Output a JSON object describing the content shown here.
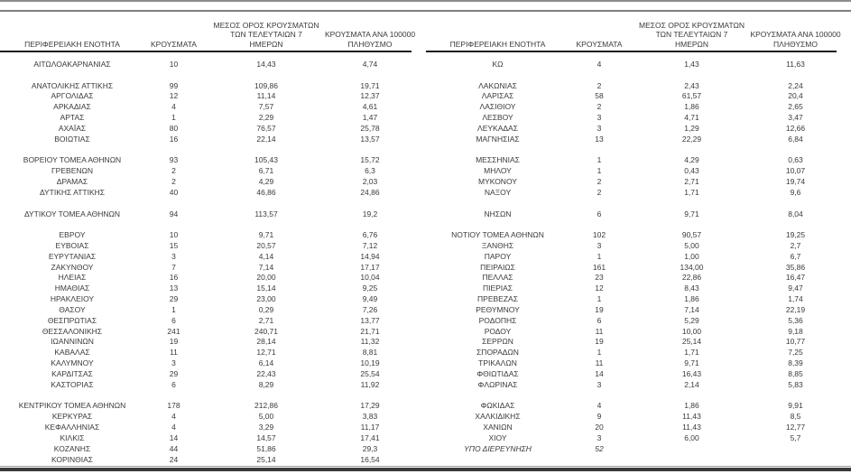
{
  "page": {
    "background": "#ffffff",
    "text_color": "#3a3a3a",
    "top_rule_color": "#8c8c8c",
    "header_rule_color": "#1c1c1c",
    "bottom_rule_color": "#3a3a3a"
  },
  "tables": [
    {
      "headers": {
        "region": "ΠΕΡΙΦΕΡΕΙΑΚΗ ΕΝΟΤΗΤΑ",
        "cases": "ΚΡΟΥΣΜΑΤΑ",
        "avg7": "ΜΕΣΟΣ ΟΡΟΣ ΚΡΟΥΣΜΑΤΩΝ\nΤΩΝ ΤΕΛΕΥΤΑΙΩΝ 7\nΗΜΕΡΩΝ",
        "per100k": "ΚΡΟΥΣΜΑΤΑ ΑΝΑ 100000\nΠΛΗΘΥΣΜΟ"
      },
      "rows": [
        {
          "region": "ΑΙΤΩΛΟΑΚΑΡΝΑΝΙΑΣ",
          "cases": "10",
          "avg7": "14,43",
          "per100k": "4,74"
        },
        {
          "blank": true
        },
        {
          "region": "ΑΝΑΤΟΛΙΚΗΣ ΑΤΤΙΚΗΣ",
          "cases": "99",
          "avg7": "109,86",
          "per100k": "19,71"
        },
        {
          "region": "ΑΡΓΟΛΙΔΑΣ",
          "cases": "12",
          "avg7": "11,14",
          "per100k": "12,37"
        },
        {
          "region": "ΑΡΚΑΔΙΑΣ",
          "cases": "4",
          "avg7": "7,57",
          "per100k": "4,61"
        },
        {
          "region": "ΑΡΤΑΣ",
          "cases": "1",
          "avg7": "2,29",
          "per100k": "1,47"
        },
        {
          "region": "ΑΧΑΪΑΣ",
          "cases": "80",
          "avg7": "76,57",
          "per100k": "25,78"
        },
        {
          "region": "ΒΟΙΩΤΙΑΣ",
          "cases": "16",
          "avg7": "22,14",
          "per100k": "13,57"
        },
        {
          "blank": true
        },
        {
          "region": "ΒΟΡΕΙΟΥ ΤΟΜΕΑ ΑΘΗΝΩΝ",
          "cases": "93",
          "avg7": "105,43",
          "per100k": "15,72"
        },
        {
          "region": "ΓΡΕΒΕΝΩΝ",
          "cases": "2",
          "avg7": "6,71",
          "per100k": "6,3"
        },
        {
          "region": "ΔΡΑΜΑΣ",
          "cases": "2",
          "avg7": "4,29",
          "per100k": "2,03"
        },
        {
          "region": "ΔΥΤΙΚΗΣ ΑΤΤΙΚΗΣ",
          "cases": "40",
          "avg7": "46,86",
          "per100k": "24,86"
        },
        {
          "blank": true
        },
        {
          "region": "ΔΥΤΙΚΟΥ ΤΟΜΕΑ ΑΘΗΝΩΝ",
          "cases": "94",
          "avg7": "113,57",
          "per100k": "19,2"
        },
        {
          "blank": true
        },
        {
          "region": "ΕΒΡΟΥ",
          "cases": "10",
          "avg7": "9,71",
          "per100k": "6,76"
        },
        {
          "region": "ΕΥΒΟΙΑΣ",
          "cases": "15",
          "avg7": "20,57",
          "per100k": "7,12"
        },
        {
          "region": "ΕΥΡΥΤΑΝΙΑΣ",
          "cases": "3",
          "avg7": "4,14",
          "per100k": "14,94"
        },
        {
          "region": "ΖΑΚΥΝΘΟΥ",
          "cases": "7",
          "avg7": "7,14",
          "per100k": "17,17"
        },
        {
          "region": "ΗΛΕΙΑΣ",
          "cases": "16",
          "avg7": "20,00",
          "per100k": "10,04"
        },
        {
          "region": "ΗΜΑΘΙΑΣ",
          "cases": "13",
          "avg7": "15,14",
          "per100k": "9,25"
        },
        {
          "region": "ΗΡΑΚΛΕΙΟΥ",
          "cases": "29",
          "avg7": "23,00",
          "per100k": "9,49"
        },
        {
          "region": "ΘΑΣΟΥ",
          "cases": "1",
          "avg7": "0,29",
          "per100k": "7,26"
        },
        {
          "region": "ΘΕΣΠΡΩΤΙΑΣ",
          "cases": "6",
          "avg7": "2,71",
          "per100k": "13,77"
        },
        {
          "region": "ΘΕΣΣΑΛΟΝΙΚΗΣ",
          "cases": "241",
          "avg7": "240,71",
          "per100k": "21,71"
        },
        {
          "region": "ΙΩΑΝΝΙΝΩΝ",
          "cases": "19",
          "avg7": "28,14",
          "per100k": "11,32"
        },
        {
          "region": "ΚΑΒΑΛΑΣ",
          "cases": "11",
          "avg7": "12,71",
          "per100k": "8,81"
        },
        {
          "region": "ΚΑΛΥΜΝΟΥ",
          "cases": "3",
          "avg7": "6,14",
          "per100k": "10,19"
        },
        {
          "region": "ΚΑΡΔΙΤΣΑΣ",
          "cases": "29",
          "avg7": "22,43",
          "per100k": "25,54"
        },
        {
          "region": "ΚΑΣΤΟΡΙΑΣ",
          "cases": "6",
          "avg7": "8,29",
          "per100k": "11,92"
        },
        {
          "blank": true
        },
        {
          "region": "ΚΕΝΤΡΙΚΟΥ ΤΟΜΕΑ ΑΘΗΝΩΝ",
          "cases": "178",
          "avg7": "212,86",
          "per100k": "17,29"
        },
        {
          "region": "ΚΕΡΚΥΡΑΣ",
          "cases": "4",
          "avg7": "5,00",
          "per100k": "3,83"
        },
        {
          "region": "ΚΕΦΑΛΛΗΝΙΑΣ",
          "cases": "4",
          "avg7": "3,29",
          "per100k": "11,17"
        },
        {
          "region": "ΚΙΛΚΙΣ",
          "cases": "14",
          "avg7": "14,57",
          "per100k": "17,41"
        },
        {
          "region": "ΚΟΖΑΝΗΣ",
          "cases": "44",
          "avg7": "51,86",
          "per100k": "29,3"
        },
        {
          "region": "ΚΟΡΙΝΘΙΑΣ",
          "cases": "24",
          "avg7": "25,14",
          "per100k": "16,54"
        }
      ]
    },
    {
      "headers": {
        "region": "ΠΕΡΙΦΕΡΕΙΑΚΗ ΕΝΟΤΗΤΑ",
        "cases": "ΚΡΟΥΣΜΑΤΑ",
        "avg7": "ΜΕΣΟΣ ΟΡΟΣ ΚΡΟΥΣΜΑΤΩΝ\nΤΩΝ ΤΕΛΕΥΤΑΙΩΝ 7\nΗΜΕΡΩΝ",
        "per100k": "ΚΡΟΥΣΜΑΤΑ ΑΝΑ 100000\nΠΛΗΘΥΣΜΟ"
      },
      "rows": [
        {
          "region": "ΚΩ",
          "cases": "4",
          "avg7": "1,43",
          "per100k": "11,63"
        },
        {
          "blank": true
        },
        {
          "region": "ΛΑΚΩΝΙΑΣ",
          "cases": "2",
          "avg7": "2,43",
          "per100k": "2,24"
        },
        {
          "region": "ΛΑΡΙΣΑΣ",
          "cases": "58",
          "avg7": "61,57",
          "per100k": "20,4"
        },
        {
          "region": "ΛΑΣΙΘΙΟΥ",
          "cases": "2",
          "avg7": "1,86",
          "per100k": "2,65"
        },
        {
          "region": "ΛΕΣΒΟΥ",
          "cases": "3",
          "avg7": "4,71",
          "per100k": "3,47"
        },
        {
          "region": "ΛΕΥΚΑΔΑΣ",
          "cases": "3",
          "avg7": "1,29",
          "per100k": "12,66"
        },
        {
          "region": "ΜΑΓΝΗΣΙΑΣ",
          "cases": "13",
          "avg7": "22,29",
          "per100k": "6,84"
        },
        {
          "blank": true
        },
        {
          "region": "ΜΕΣΣΗΝΙΑΣ",
          "cases": "1",
          "avg7": "4,29",
          "per100k": "0,63"
        },
        {
          "region": "ΜΗΛΟΥ",
          "cases": "1",
          "avg7": "0,43",
          "per100k": "10,07"
        },
        {
          "region": "ΜΥΚΟΝΟΥ",
          "cases": "2",
          "avg7": "2,71",
          "per100k": "19,74"
        },
        {
          "region": "ΝΑΞΟΥ",
          "cases": "2",
          "avg7": "1,71",
          "per100k": "9,6"
        },
        {
          "blank": true
        },
        {
          "region": "ΝΗΣΩΝ",
          "cases": "6",
          "avg7": "9,71",
          "per100k": "8,04"
        },
        {
          "blank": true
        },
        {
          "region": "ΝΟΤΙΟΥ ΤΟΜΕΑ ΑΘΗΝΩΝ",
          "cases": "102",
          "avg7": "90,57",
          "per100k": "19,25"
        },
        {
          "region": "ΞΑΝΘΗΣ",
          "cases": "3",
          "avg7": "5,00",
          "per100k": "2,7"
        },
        {
          "region": "ΠΑΡΟΥ",
          "cases": "1",
          "avg7": "1,00",
          "per100k": "6,7"
        },
        {
          "region": "ΠΕΙΡΑΙΩΣ",
          "cases": "161",
          "avg7": "134,00",
          "per100k": "35,86"
        },
        {
          "region": "ΠΕΛΛΑΣ",
          "cases": "23",
          "avg7": "22,86",
          "per100k": "16,47"
        },
        {
          "region": "ΠΙΕΡΙΑΣ",
          "cases": "12",
          "avg7": "8,43",
          "per100k": "9,47"
        },
        {
          "region": "ΠΡΕΒΕΖΑΣ",
          "cases": "1",
          "avg7": "1,86",
          "per100k": "1,74"
        },
        {
          "region": "ΡΕΘΥΜΝΟΥ",
          "cases": "19",
          "avg7": "7,14",
          "per100k": "22,19"
        },
        {
          "region": "ΡΟΔΟΠΗΣ",
          "cases": "6",
          "avg7": "5,29",
          "per100k": "5,36"
        },
        {
          "region": "ΡΟΔΟΥ",
          "cases": "11",
          "avg7": "10,00",
          "per100k": "9,18"
        },
        {
          "region": "ΣΕΡΡΩΝ",
          "cases": "19",
          "avg7": "25,14",
          "per100k": "10,77"
        },
        {
          "region": "ΣΠΟΡΑΔΩΝ",
          "cases": "1",
          "avg7": "1,71",
          "per100k": "7,25"
        },
        {
          "region": "ΤΡΙΚΑΛΩΝ",
          "cases": "11",
          "avg7": "9,71",
          "per100k": "8,39"
        },
        {
          "region": "ΦΘΙΩΤΙΔΑΣ",
          "cases": "14",
          "avg7": "16,43",
          "per100k": "8,85"
        },
        {
          "region": "ΦΛΩΡΙΝΑΣ",
          "cases": "3",
          "avg7": "2,14",
          "per100k": "5,83"
        },
        {
          "blank": true
        },
        {
          "region": "ΦΩΚΙΔΑΣ",
          "cases": "4",
          "avg7": "1,86",
          "per100k": "9,91"
        },
        {
          "region": "ΧΑΛΚΙΔΙΚΗΣ",
          "cases": "9",
          "avg7": "11,43",
          "per100k": "8,5"
        },
        {
          "region": "ΧΑΝΙΩΝ",
          "cases": "20",
          "avg7": "11,43",
          "per100k": "12,77"
        },
        {
          "region": "ΧΙΟΥ",
          "cases": "3",
          "avg7": "6,00",
          "per100k": "5,7"
        },
        {
          "region": "ΥΠΟ ΔΙΕΡΕΥΝΗΣΗ",
          "cases": "52",
          "avg7": "",
          "per100k": "",
          "italic": true
        },
        {
          "blank": true
        }
      ]
    }
  ]
}
